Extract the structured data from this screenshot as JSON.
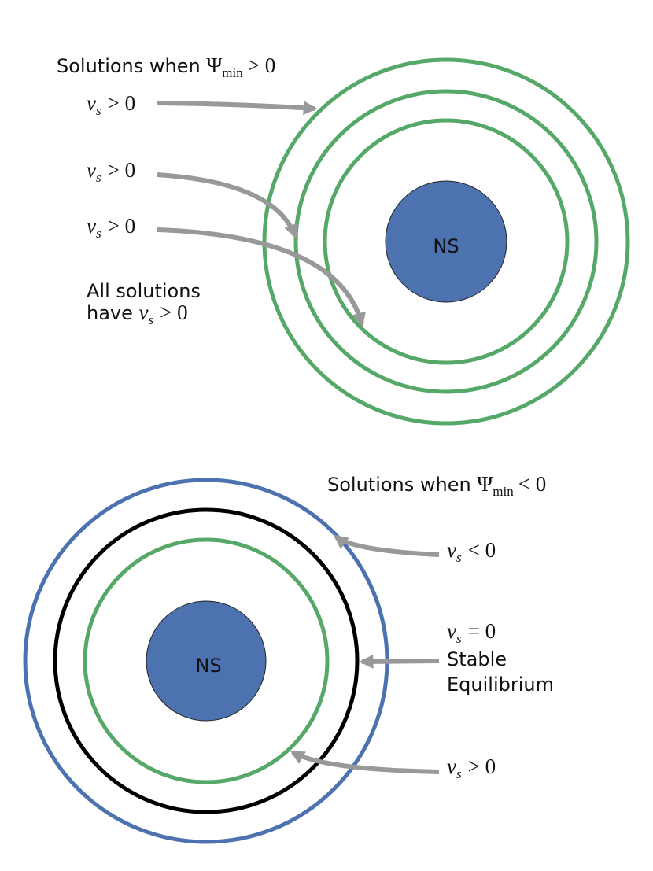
{
  "top": {
    "title": {
      "text": "Solutions when",
      "symbol": "Ψ",
      "subscript": "min",
      "relation": "> 0"
    },
    "labels": [
      {
        "var": "v",
        "sub": "s",
        "relation": "> 0"
      },
      {
        "var": "v",
        "sub": "s",
        "relation": "> 0"
      },
      {
        "var": "v",
        "sub": "s",
        "relation": "> 0"
      }
    ],
    "note": {
      "line1": "All solutions",
      "line2": "have",
      "var": "v",
      "sub": "s",
      "relation": "> 0"
    },
    "star": "NS"
  },
  "bottom": {
    "title": {
      "text": "Solutions when",
      "symbol": "Ψ",
      "subscript": "min",
      "relation": "< 0"
    },
    "labels": [
      {
        "var": "v",
        "sub": "s",
        "relation": "< 0"
      },
      {
        "var": "v",
        "sub": "s",
        "relation": "= 0",
        "caption": [
          "Stable",
          "Equilibrium"
        ]
      },
      {
        "var": "v",
        "sub": "s",
        "relation": "> 0"
      }
    ],
    "star": "NS"
  }
}
